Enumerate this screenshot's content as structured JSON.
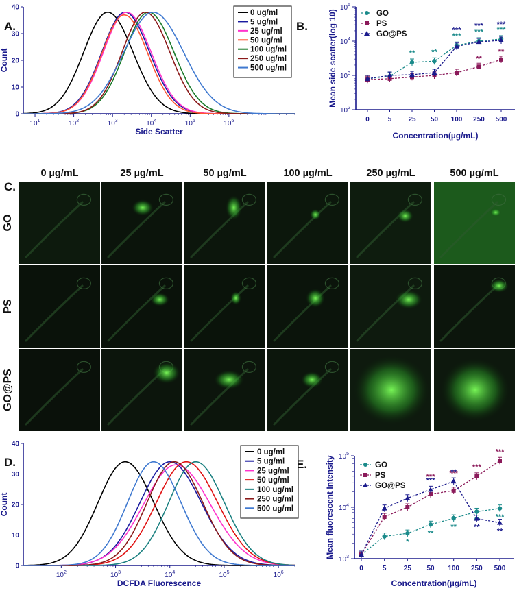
{
  "panel_labels": {
    "A": "A.",
    "B": "B.",
    "C": "C.",
    "D": "D.",
    "E": "E."
  },
  "colors": {
    "axis": "#1a1a8c",
    "series": [
      "#000000",
      "#1a1aa0",
      "#ff33cc",
      "#ff5533",
      "#1a7a2a",
      "#8b1a1a",
      "#3f79d0"
    ],
    "series_D": [
      "#000000",
      "#1a1aa0",
      "#ff33cc",
      "#e01010",
      "#1a8080",
      "#8b1a1a",
      "#3f79d0"
    ],
    "GO": "#1a8a8a",
    "PS": "#8b1a5a",
    "GOPS": "#1a1a8c"
  },
  "chart_data": [
    {
      "id": "A",
      "type": "line",
      "xlabel": "Side Scatter",
      "ylabel": "Count",
      "xscale": "log",
      "xlim": [
        5,
        50000000
      ],
      "ylim": [
        0,
        40
      ],
      "yticks": [
        "0",
        "10",
        "20",
        "30",
        "40"
      ],
      "xticks": [
        {
          "base": "10",
          "exp": "1",
          "v": 10
        },
        {
          "base": "10",
          "exp": "2",
          "v": 100
        },
        {
          "base": "10",
          "exp": "3",
          "v": 1000
        },
        {
          "base": "10",
          "exp": "4",
          "v": 10000
        },
        {
          "base": "10",
          "exp": "5",
          "v": 100000
        },
        {
          "base": "10",
          "exp": "6",
          "v": 1000000
        }
      ],
      "legend_position": "top-right",
      "series": [
        {
          "name": "0 ug/ml",
          "peak": 750,
          "width": 0.62,
          "height": 38
        },
        {
          "name": "5 ug/ml",
          "peak": 2100,
          "width": 0.6,
          "height": 38
        },
        {
          "name": "25 ug/ml",
          "peak": 2300,
          "width": 0.6,
          "height": 38
        },
        {
          "name": "50 ug/ml",
          "peak": 2000,
          "width": 0.58,
          "height": 37
        },
        {
          "name": "100 ug/ml",
          "peak": 8500,
          "width": 0.62,
          "height": 38
        },
        {
          "name": "250 ug/ml",
          "peak": 7000,
          "width": 0.6,
          "height": 38
        },
        {
          "name": "500 ug/ml",
          "peak": 11000,
          "width": 0.75,
          "height": 38
        }
      ]
    },
    {
      "id": "B",
      "type": "line",
      "xlabel": "Concentration(µg/mL)",
      "ylabel": "Mean side scatter(log 10)",
      "yscale": "log",
      "ylim": [
        100,
        100000
      ],
      "yticks": [
        {
          "base": "10",
          "exp": "2",
          "v": 100
        },
        {
          "base": "10",
          "exp": "3",
          "v": 1000
        },
        {
          "base": "10",
          "exp": "4",
          "v": 10000
        },
        {
          "base": "10",
          "exp": "5",
          "v": 100000
        }
      ],
      "categories": [
        "0",
        "5",
        "25",
        "50",
        "100",
        "250",
        "500"
      ],
      "legend_position": "top-left",
      "series": [
        {
          "name": "GO",
          "values": [
            800,
            950,
            2400,
            2600,
            7500,
            10000,
            11500
          ],
          "sig": [
            "",
            "",
            "**",
            "**",
            "***",
            "***",
            "***"
          ]
        },
        {
          "name": "PS",
          "values": [
            750,
            800,
            900,
            1000,
            1200,
            1800,
            2900
          ],
          "sig": [
            "",
            "",
            "",
            "",
            "",
            "**",
            "**"
          ]
        },
        {
          "name": "GO@PS",
          "values": [
            800,
            1000,
            1050,
            1200,
            7000,
            9500,
            10500
          ],
          "sig": [
            "",
            "",
            "",
            "",
            "***",
            "***",
            "***"
          ]
        }
      ]
    },
    {
      "id": "D",
      "type": "line",
      "xlabel": "DCFDA Fluorescence",
      "ylabel": "Count",
      "xscale": "log",
      "xlim": [
        20,
        2000000
      ],
      "ylim": [
        0,
        40
      ],
      "yticks": [
        "0",
        "10",
        "20",
        "30",
        "40"
      ],
      "xticks": [
        {
          "base": "10",
          "exp": "2",
          "v": 100
        },
        {
          "base": "10",
          "exp": "3",
          "v": 1000
        },
        {
          "base": "10",
          "exp": "4",
          "v": 10000
        },
        {
          "base": "10",
          "exp": "5",
          "v": 100000
        },
        {
          "base": "10",
          "exp": "6",
          "v": 1000000
        }
      ],
      "legend_position": "top-right",
      "series": [
        {
          "name": "0 ug/ml",
          "peak": 1500,
          "width": 0.5,
          "height": 34
        },
        {
          "name": "5 ug/ml",
          "peak": 10000,
          "width": 0.55,
          "height": 34
        },
        {
          "name": "25 ug/ml",
          "peak": 13000,
          "width": 0.6,
          "height": 33
        },
        {
          "name": "50 ug/ml",
          "peak": 20000,
          "width": 0.55,
          "height": 34
        },
        {
          "name": "100 ug/ml",
          "peak": 30000,
          "width": 0.5,
          "height": 34
        },
        {
          "name": "250 ug/ml",
          "peak": 12000,
          "width": 0.5,
          "height": 34
        },
        {
          "name": "500 ug/ml",
          "peak": 5000,
          "width": 0.48,
          "height": 34
        }
      ]
    },
    {
      "id": "E",
      "type": "line",
      "xlabel": "Concentration(µg/mL)",
      "ylabel": "Mean fluorescent Intensity",
      "yscale": "log",
      "ylim": [
        1000,
        100000
      ],
      "yticks": [
        {
          "base": "10",
          "exp": "3",
          "v": 1000
        },
        {
          "base": "10",
          "exp": "4",
          "v": 10000
        },
        {
          "base": "10",
          "exp": "5",
          "v": 100000
        }
      ],
      "categories": [
        "0",
        "5",
        "25",
        "50",
        "100",
        "250",
        "500"
      ],
      "legend_position": "top-left",
      "series": [
        {
          "name": "GO",
          "values": [
            1200,
            2700,
            3100,
            4600,
            6100,
            8200,
            9500
          ],
          "sig": [
            "",
            "",
            "*",
            "**",
            "**",
            "**",
            "***"
          ]
        },
        {
          "name": "PS",
          "values": [
            1200,
            6500,
            10000,
            18000,
            21000,
            40000,
            80000
          ],
          "sig": [
            "",
            "",
            "",
            "***",
            "***",
            "***",
            "***"
          ]
        },
        {
          "name": "GO@PS",
          "values": [
            1200,
            9500,
            15000,
            22000,
            32000,
            6000,
            5000
          ],
          "sig": [
            "",
            "",
            "",
            "***",
            "**",
            "**",
            "**"
          ]
        }
      ]
    }
  ],
  "image_grid": {
    "columns": [
      "0 µg/mL",
      "25 µg/mL",
      "50 µg/mL",
      "100 µg/mL",
      "250 µg/mL",
      "500 µg/mL"
    ],
    "rows": [
      "GO",
      "PS",
      "GO@PS"
    ]
  }
}
